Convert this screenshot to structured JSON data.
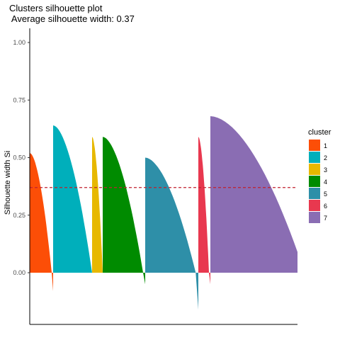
{
  "chart_data": {
    "type": "bar",
    "title": "Clusters silhouette plot",
    "subtitle": " Average silhouette width: 0.37",
    "xlabel": "",
    "ylabel": "Silhouette width Si",
    "ylim": [
      -0.2,
      1.05
    ],
    "yticks": [
      "0.00",
      "0.25",
      "0.50",
      "0.75",
      "1.00"
    ],
    "average_line": 0.37,
    "grid": false,
    "legend_position": "right",
    "legend_title": "cluster",
    "clusters": [
      {
        "name": "1",
        "color": "#FC4E07",
        "max": 0.52,
        "min": -0.08
      },
      {
        "name": "2",
        "color": "#00AFBB",
        "max": 0.64,
        "min": 0.0
      },
      {
        "name": "3",
        "color": "#E7B800",
        "max": 0.59,
        "min": 0.0
      },
      {
        "name": "4",
        "color": "#008B00",
        "max": 0.59,
        "min": -0.05
      },
      {
        "name": "5",
        "color": "#2E8FA8",
        "max": 0.5,
        "min": -0.16
      },
      {
        "name": "6",
        "color": "#E8384F",
        "max": 0.59,
        "min": -0.05
      },
      {
        "name": "7",
        "color": "#8A6DB3",
        "max": 0.68,
        "min": 0.09
      }
    ]
  }
}
